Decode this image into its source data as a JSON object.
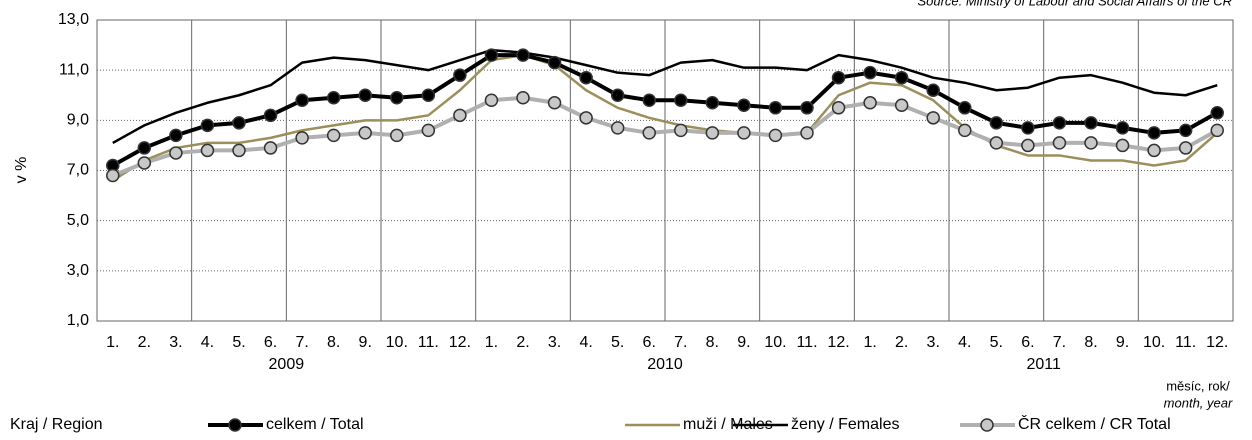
{
  "chart_data": {
    "type": "line",
    "source": "Source: Ministry of Labour and Social Affairs of the CR",
    "ylabel": "v %",
    "xlabel": [
      "měsíc, rok/",
      "month, year"
    ],
    "legend_title": "Kraj / Region",
    "categories": [
      "1.",
      "2.",
      "3.",
      "4.",
      "5.",
      "6.",
      "7.",
      "8.",
      "9.",
      "10.",
      "11.",
      "12.",
      "1.",
      "2.",
      "3.",
      "4.",
      "5.",
      "6.",
      "7.",
      "8.",
      "9.",
      "10.",
      "11.",
      "12.",
      "1.",
      "2.",
      "3.",
      "4.",
      "5.",
      "6.",
      "7.",
      "8.",
      "9.",
      "10.",
      "11.",
      "12."
    ],
    "years": [
      "2009",
      "2010",
      "2011"
    ],
    "ylim": [
      1,
      13
    ],
    "yticks": [
      {
        "value": 1,
        "label": "1,0"
      },
      {
        "value": 3,
        "label": "3,0"
      },
      {
        "value": 5,
        "label": "5,0"
      },
      {
        "value": 7,
        "label": "7,0"
      },
      {
        "value": 9,
        "label": "9,0"
      },
      {
        "value": 11,
        "label": "11,0"
      },
      {
        "value": 13,
        "label": "13,0"
      }
    ],
    "grid": true,
    "series": [
      {
        "name": "celkem / Total",
        "color": "#000000",
        "width": 4,
        "marker": "#000000",
        "values": [
          7.2,
          7.9,
          8.4,
          8.8,
          8.9,
          9.2,
          9.8,
          9.9,
          10.0,
          9.9,
          10.0,
          10.8,
          11.6,
          11.6,
          11.3,
          10.7,
          10.0,
          9.8,
          9.8,
          9.7,
          9.6,
          9.5,
          9.5,
          10.7,
          10.9,
          10.7,
          10.2,
          9.5,
          8.9,
          8.7,
          8.9,
          8.9,
          8.7,
          8.5,
          8.6,
          9.3
        ]
      },
      {
        "name": "muži / Males",
        "color": "#9c8f5c",
        "width": 2.5,
        "marker": null,
        "values": [
          6.6,
          7.4,
          7.9,
          8.1,
          8.1,
          8.3,
          8.6,
          8.8,
          9.0,
          9.0,
          9.2,
          10.2,
          11.4,
          11.6,
          11.2,
          10.2,
          9.5,
          9.1,
          8.8,
          8.6,
          8.5,
          8.4,
          8.5,
          10.0,
          10.5,
          10.4,
          9.8,
          8.7,
          8.0,
          7.6,
          7.6,
          7.4,
          7.4,
          7.2,
          7.4,
          8.5
        ]
      },
      {
        "name": "ženy / Females",
        "color": "#000000",
        "width": 2.5,
        "marker": null,
        "values": [
          8.1,
          8.8,
          9.3,
          9.7,
          10.0,
          10.4,
          11.3,
          11.5,
          11.4,
          11.2,
          11.0,
          11.4,
          11.8,
          11.7,
          11.5,
          11.2,
          10.9,
          10.8,
          11.3,
          11.4,
          11.1,
          11.1,
          11.0,
          11.6,
          11.4,
          11.1,
          10.7,
          10.5,
          10.2,
          10.3,
          10.7,
          10.8,
          10.5,
          10.1,
          10.0,
          10.4
        ]
      },
      {
        "name": "ČR celkem / CR Total",
        "color": "#b0b0b0",
        "width": 4,
        "marker": "#c8c8c8",
        "values": [
          6.8,
          7.3,
          7.7,
          7.8,
          7.8,
          7.9,
          8.3,
          8.4,
          8.5,
          8.4,
          8.6,
          9.2,
          9.8,
          9.9,
          9.7,
          9.1,
          8.7,
          8.5,
          8.6,
          8.5,
          8.5,
          8.4,
          8.5,
          9.5,
          9.7,
          9.6,
          9.1,
          8.6,
          8.1,
          8.0,
          8.1,
          8.1,
          8.0,
          7.8,
          7.9,
          8.6
        ]
      }
    ]
  }
}
